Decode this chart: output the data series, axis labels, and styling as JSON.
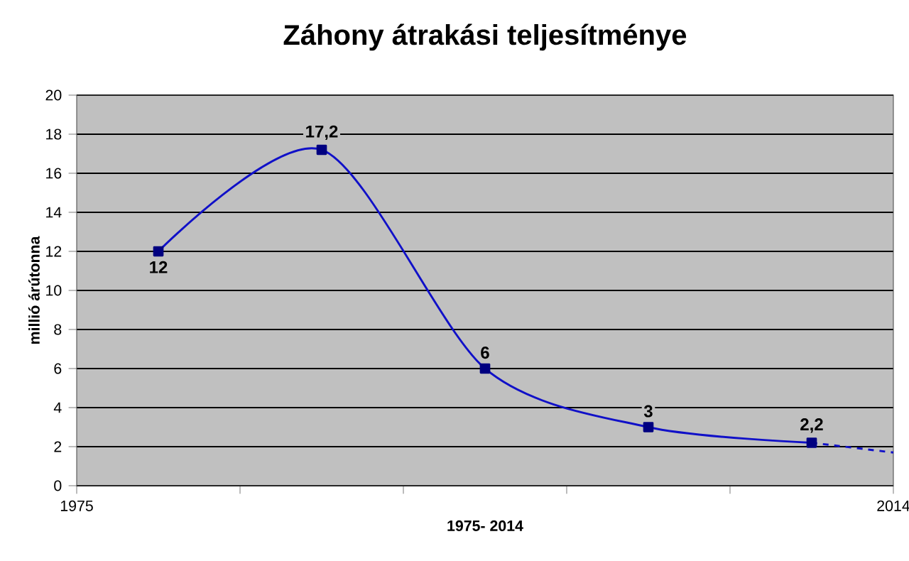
{
  "chart_data": {
    "type": "line",
    "title": "Záhony átrakási teljesítménye",
    "xlabel": "1975- 2014",
    "ylabel": "millió árútonna",
    "xlim": [
      1975,
      2014
    ],
    "xticks": [
      1975,
      {
        "value": 1982.8,
        "label": null
      },
      {
        "value": 1990.6,
        "label": null
      },
      {
        "value": 1998.4,
        "label": null
      },
      {
        "value": 2006.2,
        "label": null
      },
      2014
    ],
    "ylim": [
      0,
      20
    ],
    "yticks": [
      0,
      2,
      4,
      6,
      8,
      10,
      12,
      14,
      16,
      18,
      20
    ],
    "grid": "y",
    "series": [
      {
        "color": "#1010c8",
        "x": [
          1978.9,
          1986.7,
          1994.5,
          2002.3,
          2010.1
        ],
        "values": [
          12,
          17.2,
          6,
          3,
          2.2
        ],
        "value_labels": [
          "12",
          "17,2",
          "6",
          "3",
          "2,2"
        ],
        "marker": "square",
        "line_style": "solid"
      },
      {
        "color": "#1010c8",
        "x": [
          2010.1,
          2014
        ],
        "values": [
          2.2,
          1.7
        ],
        "marker": "none",
        "line_style": "dashed"
      }
    ]
  }
}
